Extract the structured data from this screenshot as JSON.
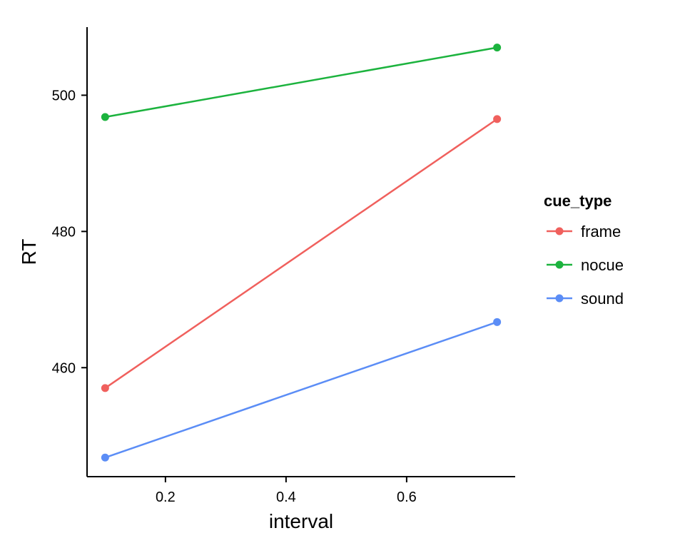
{
  "chart_data": {
    "type": "line",
    "xlabel": "interval",
    "ylabel": "RT",
    "xlim": [
      0.07,
      0.78
    ],
    "ylim": [
      444,
      510
    ],
    "x_ticks": [
      0.2,
      0.4,
      0.6
    ],
    "x_tick_labels": [
      "0.2",
      "0.4",
      "0.6"
    ],
    "y_ticks": [
      460,
      480,
      500
    ],
    "y_tick_labels": [
      "460",
      "480",
      "500"
    ],
    "grid": false,
    "legend": {
      "title": "cue_type",
      "placement": "right",
      "entries": [
        "frame",
        "nocue",
        "sound"
      ]
    },
    "series": [
      {
        "name": "frame",
        "color": "#F0605D",
        "x": [
          0.1,
          0.75
        ],
        "y": [
          457.0,
          496.5
        ]
      },
      {
        "name": "nocue",
        "color": "#1CB33E",
        "x": [
          0.1,
          0.75
        ],
        "y": [
          496.8,
          507.0
        ]
      },
      {
        "name": "sound",
        "color": "#5B8DF6",
        "x": [
          0.1,
          0.75
        ],
        "y": [
          446.8,
          466.7
        ]
      }
    ]
  }
}
